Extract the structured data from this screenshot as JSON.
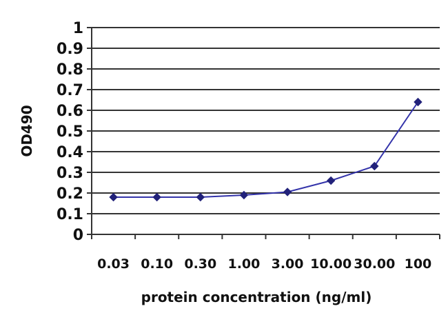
{
  "chart_data": {
    "type": "line",
    "title": "",
    "xlabel": "protein concentration  (ng/ml)",
    "ylabel": "OD490",
    "categories": [
      "0.03",
      "0.10",
      "0.30",
      "1.00",
      "3.00",
      "10.00",
      "30.00",
      "100"
    ],
    "series": [
      {
        "values": [
          0.18,
          0.18,
          0.18,
          0.19,
          0.205,
          0.26,
          0.33,
          0.64
        ],
        "color": "#3333aa"
      }
    ],
    "yticks": [
      "0",
      "0.1",
      "0.2",
      "0.3",
      "0.4",
      "0.5",
      "0.6",
      "0.7",
      "0.8",
      "0.9",
      "1"
    ],
    "ylim": [
      0,
      1
    ],
    "grid": true,
    "legend": "none"
  }
}
